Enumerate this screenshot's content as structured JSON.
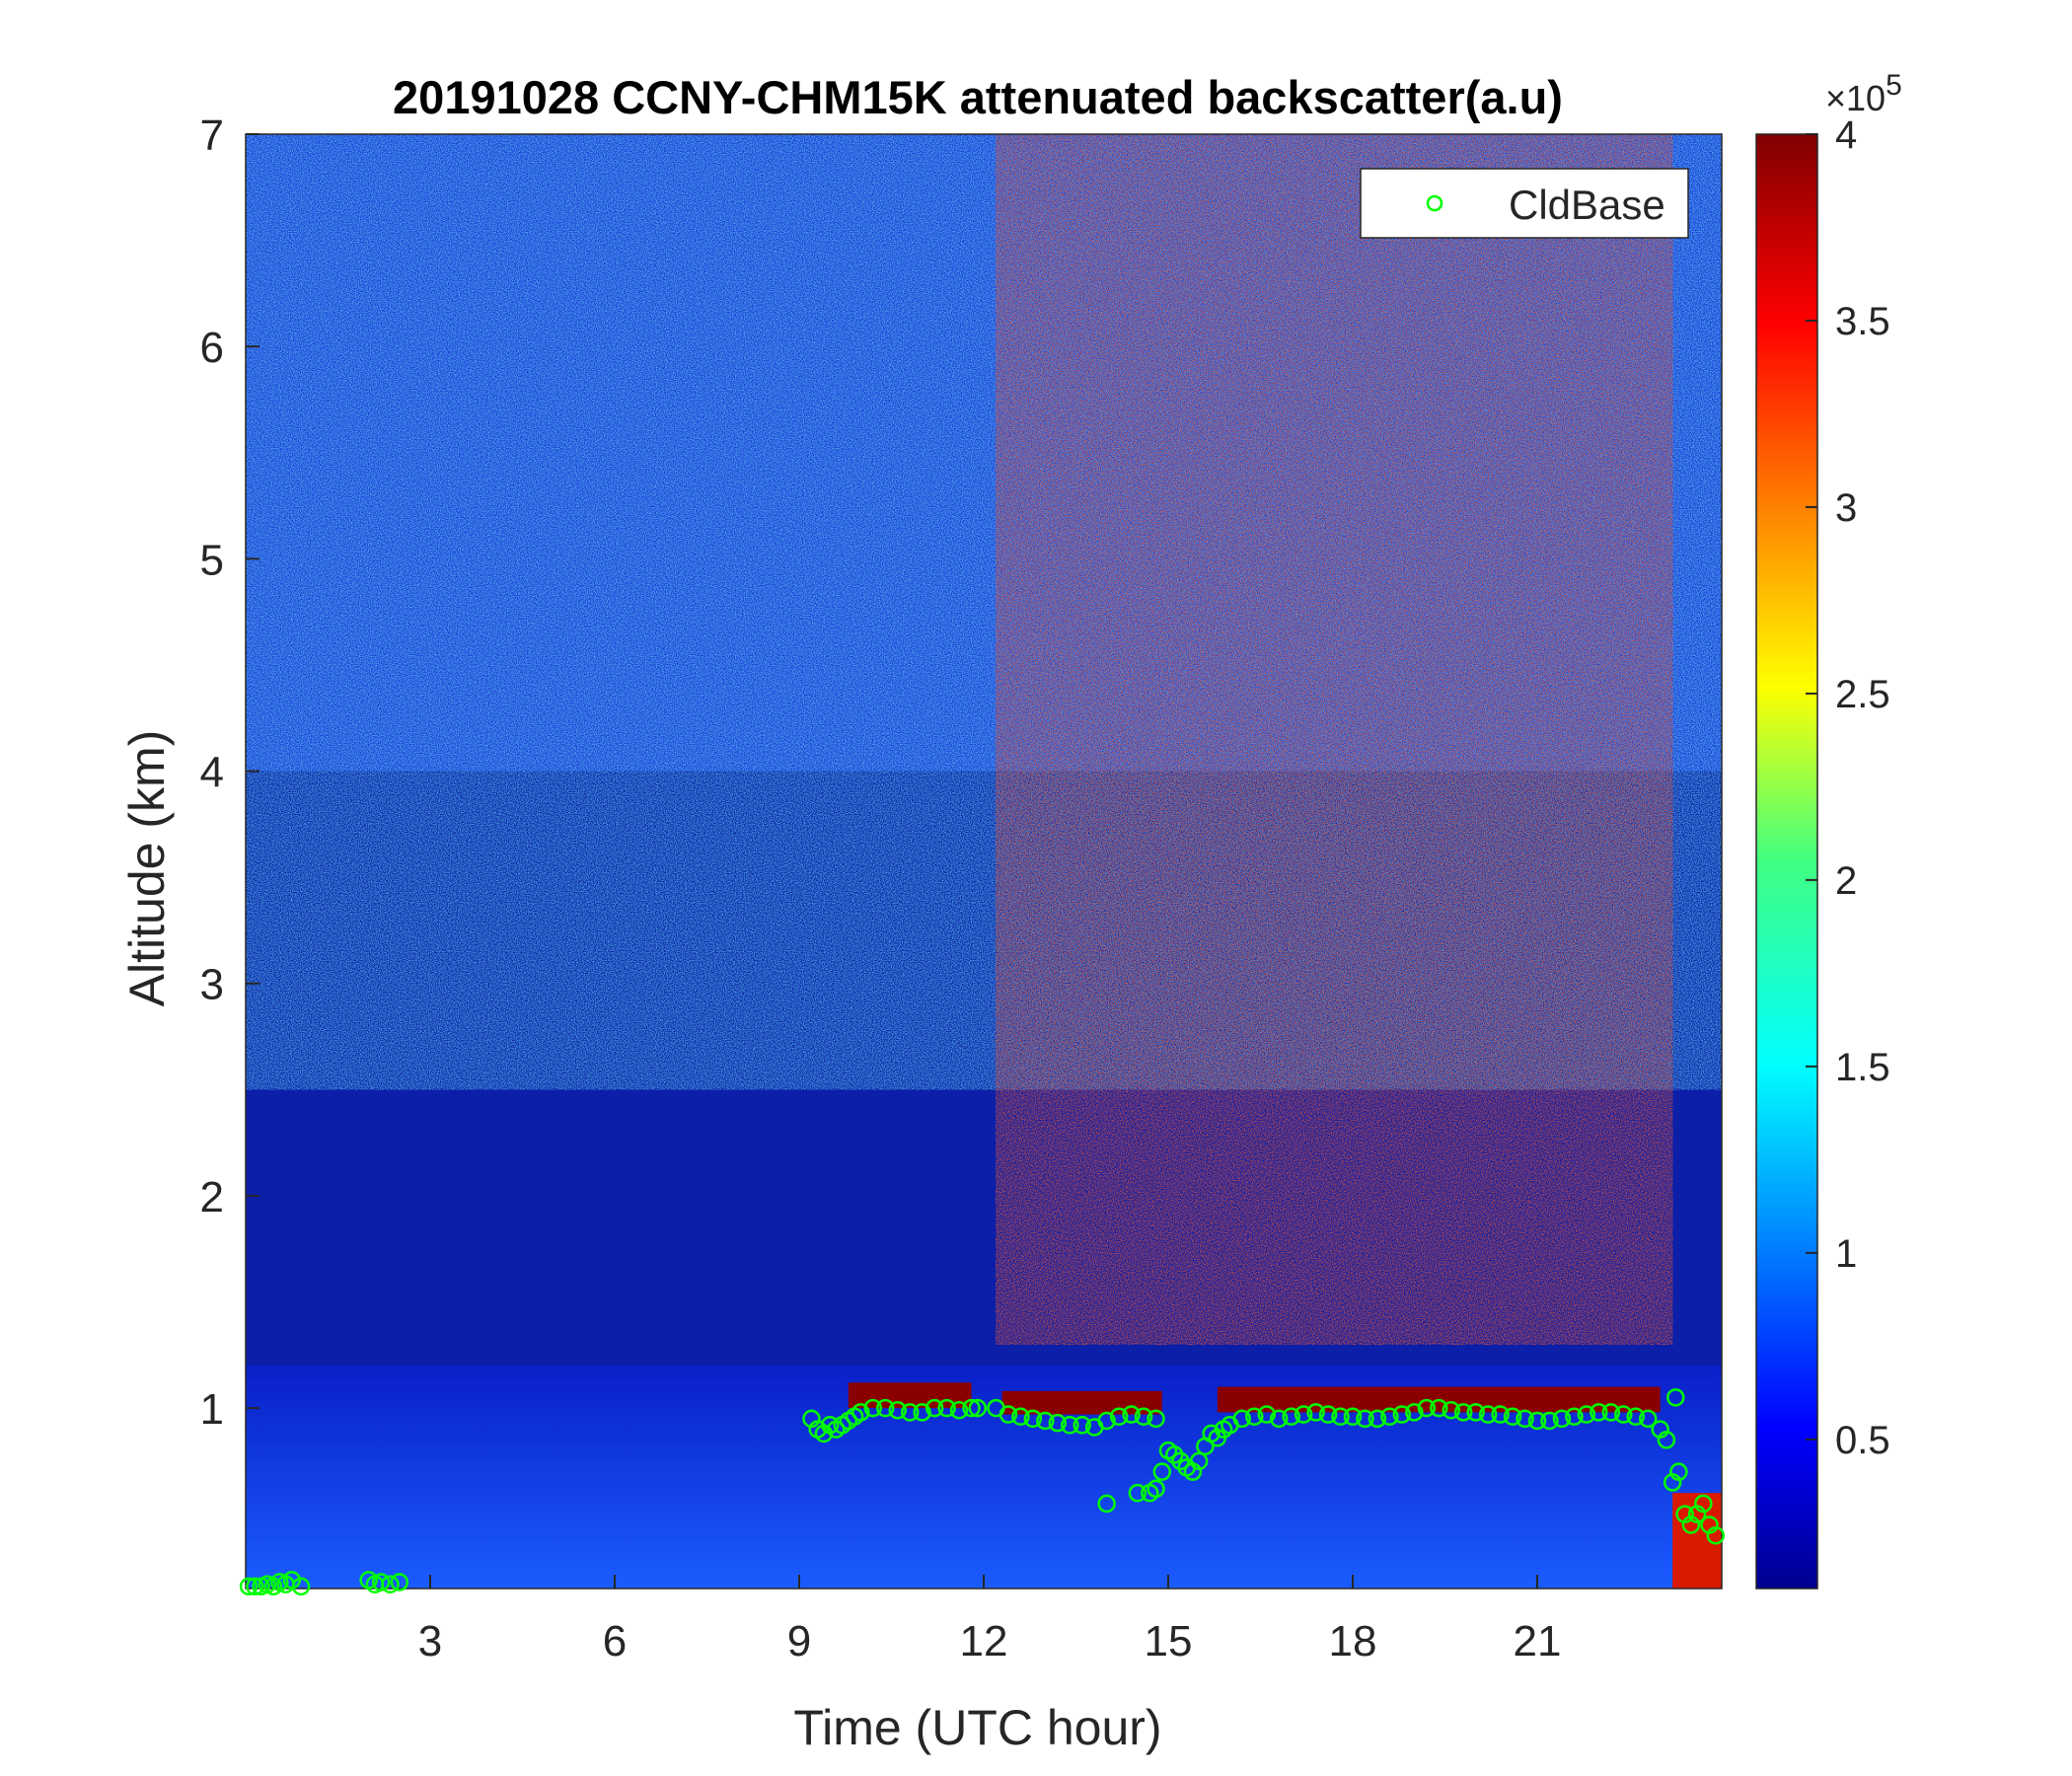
{
  "chart_data": {
    "type": "heatmap",
    "title": "20191028 CCNY-CHM15K attenuated backscatter(a.u)",
    "xlabel": "Time (UTC hour)",
    "ylabel": "Altitude (km)",
    "xlim": [
      0,
      24
    ],
    "ylim": [
      0.15,
      7
    ],
    "xticks": [
      3,
      6,
      9,
      12,
      15,
      18,
      21
    ],
    "yticks": [
      1,
      2,
      3,
      4,
      5,
      6,
      7
    ],
    "colorbar": {
      "colormap": "jet",
      "range": [
        0.1,
        4
      ],
      "ticks": [
        0.5,
        1,
        1.5,
        2,
        2.5,
        3,
        3.5,
        4
      ],
      "tick_labels": [
        "0.5",
        "1",
        "1.5",
        "2",
        "2.5",
        "3",
        "3.5",
        "4"
      ],
      "multiplier_label": "×10",
      "multiplier_exponent": "5"
    },
    "legend": {
      "placement": "top-right",
      "entries": [
        "CldBase"
      ]
    },
    "series": [
      {
        "name": "CldBase",
        "marker": "circle-open",
        "color": "#00ff00",
        "x": [
          0.05,
          0.15,
          0.25,
          0.35,
          0.45,
          0.55,
          0.65,
          0.75,
          0.9,
          2.0,
          2.1,
          2.2,
          2.35,
          2.5,
          9.2,
          9.3,
          9.4,
          9.5,
          9.6,
          9.7,
          9.8,
          9.9,
          10.0,
          10.2,
          10.4,
          10.6,
          10.8,
          11.0,
          11.2,
          11.4,
          11.6,
          11.8,
          11.9,
          12.2,
          12.4,
          12.6,
          12.8,
          13.0,
          13.2,
          13.4,
          13.6,
          13.8,
          14.0,
          14.2,
          14.4,
          14.6,
          14.8,
          14.0,
          14.5,
          14.7,
          14.8,
          14.9,
          15.0,
          15.1,
          15.2,
          15.3,
          15.4,
          15.5,
          15.6,
          15.7,
          15.8,
          15.9,
          16.0,
          16.2,
          16.4,
          16.6,
          16.8,
          17.0,
          17.2,
          17.4,
          17.6,
          17.8,
          18.0,
          18.2,
          18.4,
          18.6,
          18.8,
          19.0,
          19.2,
          19.4,
          19.6,
          19.8,
          20.0,
          20.2,
          20.4,
          20.6,
          20.8,
          21.0,
          21.2,
          21.4,
          21.6,
          21.8,
          22.0,
          22.2,
          22.4,
          22.6,
          22.8,
          23.0,
          23.1,
          23.2,
          23.25,
          23.3,
          23.4,
          23.5,
          23.6,
          23.7,
          23.8,
          23.9
        ],
        "y": [
          0.16,
          0.16,
          0.16,
          0.17,
          0.16,
          0.18,
          0.17,
          0.19,
          0.16,
          0.19,
          0.17,
          0.18,
          0.17,
          0.18,
          0.95,
          0.9,
          0.88,
          0.92,
          0.9,
          0.92,
          0.94,
          0.96,
          0.98,
          1.0,
          1.0,
          0.99,
          0.98,
          0.98,
          1.0,
          1.0,
          0.99,
          1.0,
          1.0,
          1.0,
          0.97,
          0.96,
          0.95,
          0.94,
          0.93,
          0.92,
          0.92,
          0.91,
          0.94,
          0.96,
          0.97,
          0.96,
          0.95,
          0.55,
          0.6,
          0.6,
          0.62,
          0.7,
          0.8,
          0.78,
          0.75,
          0.72,
          0.7,
          0.75,
          0.82,
          0.88,
          0.86,
          0.9,
          0.92,
          0.95,
          0.96,
          0.97,
          0.95,
          0.96,
          0.97,
          0.98,
          0.97,
          0.96,
          0.96,
          0.95,
          0.95,
          0.96,
          0.97,
          0.98,
          1.0,
          1.0,
          0.99,
          0.98,
          0.98,
          0.97,
          0.97,
          0.96,
          0.95,
          0.94,
          0.94,
          0.95,
          0.96,
          0.97,
          0.98,
          0.98,
          0.97,
          0.96,
          0.95,
          0.9,
          0.85,
          0.65,
          1.05,
          0.7,
          0.5,
          0.45,
          0.5,
          0.55,
          0.45,
          0.4
        ]
      }
    ]
  }
}
